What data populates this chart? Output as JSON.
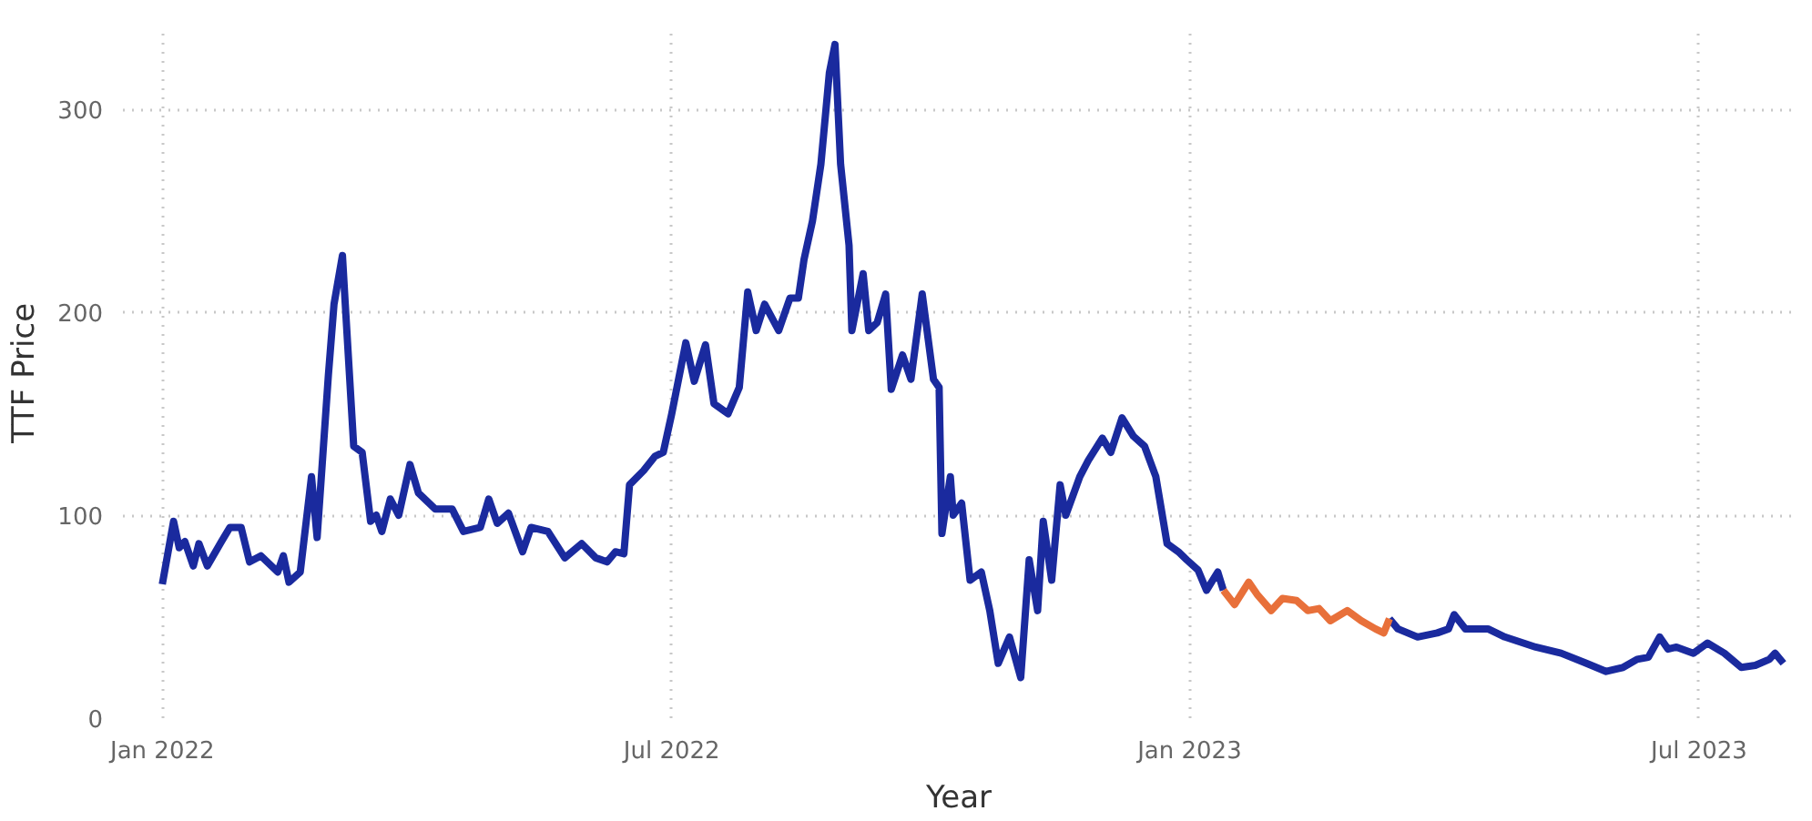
{
  "chart_data": {
    "type": "line",
    "xlabel": "Year",
    "ylabel": "TTF Price",
    "xlim": [
      "2021-12-18",
      "2023-08-04"
    ],
    "ylim": [
      0,
      340
    ],
    "xticks": [
      {
        "value": "2022-01-01",
        "label": "Jan 2022"
      },
      {
        "value": "2022-07-01",
        "label": "Jul 2022"
      },
      {
        "value": "2023-01-01",
        "label": "Jan 2023"
      },
      {
        "value": "2023-07-01",
        "label": "Jul 2023"
      }
    ],
    "yticks": [
      0,
      100,
      200,
      300
    ],
    "grid": true,
    "marker": "none",
    "line_style": "solid",
    "series": [
      {
        "color": "#1a2a9e",
        "x": [
          "2022-01-01",
          "2022-01-05",
          "2022-01-07",
          "2022-01-09",
          "2022-01-12",
          "2022-01-14",
          "2022-01-17",
          "2022-01-22",
          "2022-01-25",
          "2022-01-29",
          "2022-02-01",
          "2022-02-05",
          "2022-02-11",
          "2022-02-13",
          "2022-02-15",
          "2022-02-19",
          "2022-02-23",
          "2022-02-25",
          "2022-03-01",
          "2022-03-03",
          "2022-03-06",
          "2022-03-07",
          "2022-03-10",
          "2022-03-13",
          "2022-03-16",
          "2022-03-18",
          "2022-03-20",
          "2022-03-23",
          "2022-03-26",
          "2022-03-30",
          "2022-04-02",
          "2022-04-08",
          "2022-04-14",
          "2022-04-18",
          "2022-04-24",
          "2022-04-27",
          "2022-04-30",
          "2022-05-04",
          "2022-05-09",
          "2022-05-12",
          "2022-05-18",
          "2022-05-24",
          "2022-05-30",
          "2022-06-04",
          "2022-06-08",
          "2022-06-11",
          "2022-06-14",
          "2022-06-16",
          "2022-06-21",
          "2022-06-25",
          "2022-06-28",
          "2022-07-01",
          "2022-07-06",
          "2022-07-09",
          "2022-07-13",
          "2022-07-16",
          "2022-07-21",
          "2022-07-25",
          "2022-07-28",
          "2022-07-31",
          "2022-08-03",
          "2022-08-08",
          "2022-08-12",
          "2022-08-15",
          "2022-08-17",
          "2022-08-20",
          "2022-08-23",
          "2022-08-26",
          "2022-08-28",
          "2022-08-30",
          "2022-09-02",
          "2022-09-03",
          "2022-09-07",
          "2022-09-09",
          "2022-09-12",
          "2022-09-15",
          "2022-09-17",
          "2022-09-21",
          "2022-09-24",
          "2022-09-28",
          "2022-10-02",
          "2022-10-04",
          "2022-10-05",
          "2022-10-08",
          "2022-10-09",
          "2022-10-12",
          "2022-10-15",
          "2022-10-19",
          "2022-10-22",
          "2022-10-25",
          "2022-10-29",
          "2022-10-31",
          "2022-11-02",
          "2022-11-05",
          "2022-11-08",
          "2022-11-10",
          "2022-11-13",
          "2022-11-16",
          "2022-11-18",
          "2022-11-23",
          "2022-11-26",
          "2022-12-01",
          "2022-12-04",
          "2022-12-08",
          "2022-12-12",
          "2022-12-16",
          "2022-12-20",
          "2022-12-24",
          "2022-12-28",
          "2022-12-31",
          "2023-01-04",
          "2023-01-07",
          "2023-01-11",
          "2023-01-13",
          "2023-02-15",
          "2023-03-13",
          "2023-03-16",
          "2023-03-23",
          "2023-03-30",
          "2023-04-03",
          "2023-04-05",
          "2023-04-09",
          "2023-04-17",
          "2023-04-23",
          "2023-05-04",
          "2023-05-13",
          "2023-05-22",
          "2023-05-29",
          "2023-06-04",
          "2023-06-09",
          "2023-06-13",
          "2023-06-17",
          "2023-06-20",
          "2023-06-23",
          "2023-06-29",
          "2023-07-04",
          "2023-07-10",
          "2023-07-16",
          "2023-07-21",
          "2023-07-26",
          "2023-07-28",
          "2023-07-31"
        ],
        "values": [
          66,
          97,
          84,
          87,
          75,
          86,
          75,
          87,
          94,
          94,
          77,
          80,
          72,
          80,
          67,
          72,
          119,
          89,
          169,
          204,
          228,
          204,
          134,
          131,
          97,
          100,
          92,
          108,
          100,
          125,
          111,
          103,
          103,
          92,
          94,
          108,
          96,
          101,
          82,
          94,
          92,
          79,
          86,
          79,
          77,
          82,
          81,
          115,
          122,
          129,
          131,
          150,
          185,
          166,
          184,
          155,
          150,
          163,
          210,
          191,
          204,
          191,
          207,
          207,
          226,
          245,
          273,
          318,
          332,
          273,
          233,
          191,
          219,
          191,
          195,
          209,
          162,
          179,
          167,
          209,
          167,
          163,
          91,
          119,
          100,
          106,
          68,
          72,
          53,
          27,
          40,
          30,
          20,
          78,
          53,
          97,
          68,
          115,
          100,
          119,
          127,
          138,
          131,
          148,
          139,
          134,
          119,
          86,
          82,
          78,
          73,
          63,
          72,
          63,
          null,
          49,
          44,
          40,
          42,
          44,
          51,
          44,
          44,
          40,
          35,
          32,
          27,
          23,
          25,
          29,
          30,
          40,
          34,
          35,
          32,
          37,
          32,
          25,
          26,
          29,
          32,
          27
        ]
      },
      {
        "color": "#e8703a",
        "x": [
          "2023-01-13",
          "2023-01-17",
          "2023-01-22",
          "2023-01-25",
          "2023-01-30",
          "2023-02-03",
          "2023-02-08",
          "2023-02-12",
          "2023-02-16",
          "2023-02-20",
          "2023-02-26",
          "2023-03-03",
          "2023-03-08",
          "2023-03-11",
          "2023-03-13"
        ],
        "values": [
          63,
          56,
          67,
          61,
          53,
          59,
          58,
          53,
          54,
          48,
          53,
          48,
          44,
          42,
          49
        ]
      }
    ]
  }
}
